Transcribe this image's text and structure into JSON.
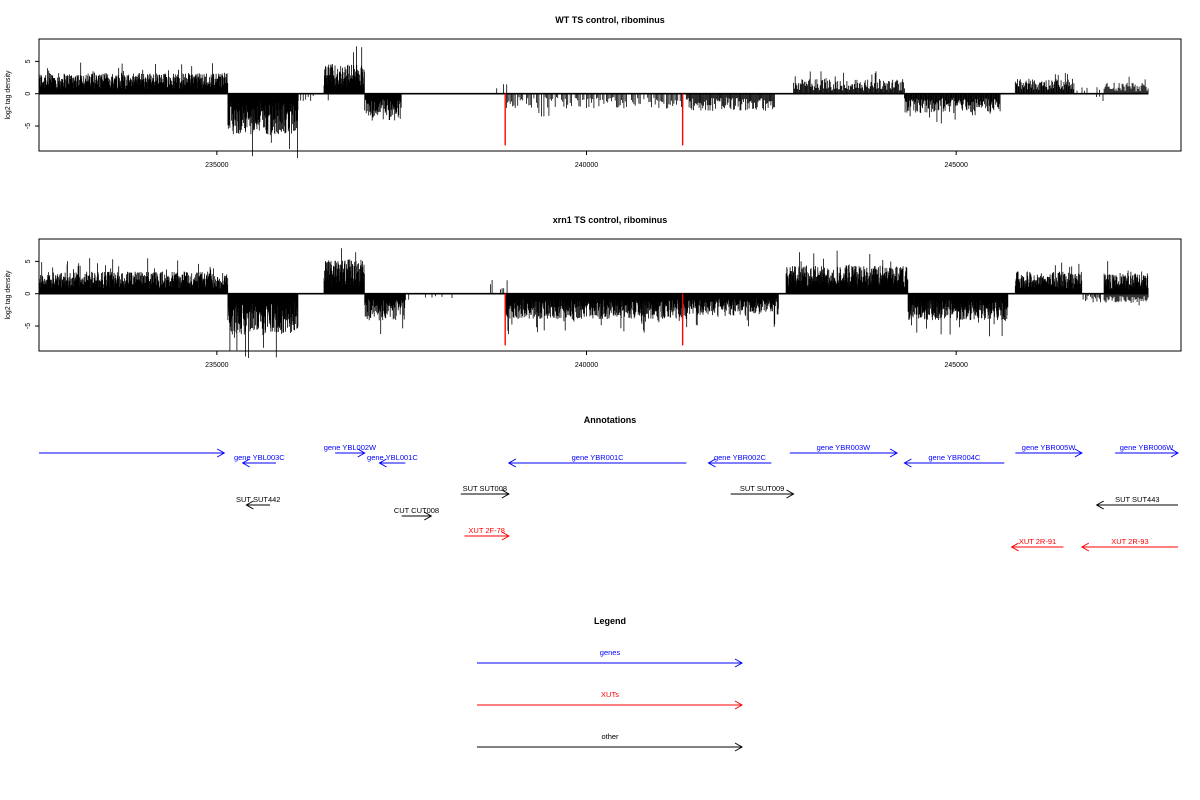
{
  "colors": {
    "gene": "#0000ff",
    "xut": "#ff0000",
    "other": "#000000",
    "marker": "#ff0000",
    "axis": "#000000"
  },
  "chart_data": [
    {
      "type": "bar",
      "title": "WT TS control, ribominus",
      "ylabel": "log2 tag density",
      "xlim": [
        232500,
        248000
      ],
      "ylim": [
        -8.4,
        8
      ],
      "x_ticks": [
        235000,
        240000,
        245000
      ],
      "y_ticks": [
        5,
        0,
        -5
      ],
      "grid": false,
      "markers_x": [
        238900,
        241300
      ],
      "regions": [
        {
          "strand": "+",
          "x0": 232600,
          "x1": 235150,
          "amp": 2.8,
          "density": 3
        },
        {
          "strand": "-",
          "x0": 235150,
          "x1": 236100,
          "amp": 5.5,
          "density": 3
        },
        {
          "strand": "-",
          "x0": 236100,
          "x1": 236600,
          "amp": 1.0,
          "density": 0.4
        },
        {
          "strand": "+",
          "x0": 236450,
          "x1": 237000,
          "amp": 4.0,
          "density": 3
        },
        {
          "strand": "-",
          "x0": 237000,
          "x1": 237500,
          "amp": 3.6,
          "density": 2
        },
        {
          "strand": "+",
          "x0": 238650,
          "x1": 238950,
          "amp": 1.5,
          "density": 0.3
        },
        {
          "strand": "-",
          "x0": 238900,
          "x1": 241350,
          "amp": 2.0,
          "density": 0.8
        },
        {
          "strand": "-",
          "x0": 241350,
          "x1": 242550,
          "amp": 2.3,
          "density": 1.1
        },
        {
          "strand": "+",
          "x0": 242800,
          "x1": 244300,
          "amp": 2.0,
          "density": 1.2
        },
        {
          "strand": "-",
          "x0": 244300,
          "x1": 245600,
          "amp": 2.6,
          "density": 1.6
        },
        {
          "strand": "+",
          "x0": 245800,
          "x1": 246600,
          "amp": 2.0,
          "density": 1.4
        },
        {
          "strand": "+",
          "x0": 246600,
          "x1": 247000,
          "amp": 1.0,
          "density": 0.4
        },
        {
          "strand": "-",
          "x0": 246400,
          "x1": 247000,
          "amp": 1.0,
          "density": 0.3
        },
        {
          "strand": "+",
          "x0": 247000,
          "x1": 247600,
          "amp": 1.5,
          "density": 1.0
        }
      ]
    },
    {
      "type": "bar",
      "title": "xrn1 TS control, ribominus",
      "ylabel": "log2 tag density",
      "xlim": [
        232500,
        248000
      ],
      "ylim": [
        -8.4,
        8
      ],
      "x_ticks": [
        235000,
        240000,
        245000
      ],
      "y_ticks": [
        5,
        0,
        -5
      ],
      "grid": false,
      "markers_x": [
        238900,
        241300
      ],
      "regions": [
        {
          "strand": "+",
          "x0": 232600,
          "x1": 235150,
          "amp": 3.0,
          "density": 3
        },
        {
          "strand": "-",
          "x0": 235150,
          "x1": 236100,
          "amp": 5.5,
          "density": 3
        },
        {
          "strand": "+",
          "x0": 236450,
          "x1": 237000,
          "amp": 4.6,
          "density": 3
        },
        {
          "strand": "-",
          "x0": 237000,
          "x1": 237550,
          "amp": 3.6,
          "density": 2
        },
        {
          "strand": "-",
          "x0": 237550,
          "x1": 238200,
          "amp": 1.0,
          "density": 0.3
        },
        {
          "strand": "+",
          "x0": 238700,
          "x1": 238950,
          "amp": 2.0,
          "density": 0.6
        },
        {
          "strand": "-",
          "x0": 238900,
          "x1": 241350,
          "amp": 3.4,
          "density": 3
        },
        {
          "strand": "-",
          "x0": 241350,
          "x1": 242600,
          "amp": 3.0,
          "density": 2.4
        },
        {
          "strand": "+",
          "x0": 242700,
          "x1": 244350,
          "amp": 3.8,
          "density": 3
        },
        {
          "strand": "-",
          "x0": 244350,
          "x1": 245700,
          "amp": 3.6,
          "density": 3
        },
        {
          "strand": "+",
          "x0": 245800,
          "x1": 246700,
          "amp": 3.0,
          "density": 2.5
        },
        {
          "strand": "-",
          "x0": 246700,
          "x1": 247000,
          "amp": 1.2,
          "density": 0.8
        },
        {
          "strand": "+",
          "x0": 247000,
          "x1": 247600,
          "amp": 2.8,
          "density": 2.5
        },
        {
          "strand": "-",
          "x0": 247000,
          "x1": 247600,
          "amp": 1.2,
          "density": 1
        }
      ]
    },
    {
      "type": "annotation",
      "title": "Annotations",
      "xlim": [
        232500,
        248000
      ],
      "features": [
        {
          "label": "",
          "kind": "gene",
          "x0": 232500,
          "x1": 235100,
          "dir": 1,
          "row": 0
        },
        {
          "label": "gene YBL003C",
          "kind": "gene",
          "x0": 235350,
          "x1": 235800,
          "dir": -1,
          "row": 1
        },
        {
          "label": "gene YBL002W",
          "kind": "gene",
          "x0": 236600,
          "x1": 237000,
          "dir": 1,
          "row": 0
        },
        {
          "label": "gene YBL001C",
          "kind": "gene",
          "x0": 237200,
          "x1": 237550,
          "dir": -1,
          "row": 1
        },
        {
          "label": "gene YBR001C",
          "kind": "gene",
          "x0": 238950,
          "x1": 241350,
          "dir": -1,
          "row": 1
        },
        {
          "label": "gene YBR002C",
          "kind": "gene",
          "x0": 241650,
          "x1": 242500,
          "dir": -1,
          "row": 1
        },
        {
          "label": "gene YBR003W",
          "kind": "gene",
          "x0": 242750,
          "x1": 244200,
          "dir": 1,
          "row": 0
        },
        {
          "label": "gene YBR004C",
          "kind": "gene",
          "x0": 244300,
          "x1": 245650,
          "dir": -1,
          "row": 1
        },
        {
          "label": "gene YBR005W",
          "kind": "gene",
          "x0": 245800,
          "x1": 246700,
          "dir": 1,
          "row": 0
        },
        {
          "label": "gene YBR006W",
          "kind": "gene",
          "x0": 247150,
          "x1": 248000,
          "dir": 1,
          "row": 0
        },
        {
          "label": "SUT SUT442",
          "kind": "other",
          "x0": 235400,
          "x1": 235720,
          "dir": -1,
          "row": 2
        },
        {
          "label": "SUT SUT008",
          "kind": "other",
          "x0": 238300,
          "x1": 238950,
          "dir": 1,
          "row": 3
        },
        {
          "label": "CUT CUT008",
          "kind": "other",
          "x0": 237500,
          "x1": 237900,
          "dir": 1,
          "row": 4
        },
        {
          "label": "SUT SUT009",
          "kind": "other",
          "x0": 241950,
          "x1": 242800,
          "dir": 1,
          "row": 3
        },
        {
          "label": "SUT SUT443",
          "kind": "other",
          "x0": 246900,
          "x1": 248000,
          "dir": -1,
          "row": 2
        },
        {
          "label": "XUT 2F-78",
          "kind": "xut",
          "x0": 238350,
          "x1": 238950,
          "dir": 1,
          "row": 5
        },
        {
          "label": "XUT 2R-91",
          "kind": "xut",
          "x0": 245750,
          "x1": 246450,
          "dir": -1,
          "row": 6
        },
        {
          "label": "XUT 2R-93",
          "kind": "xut",
          "x0": 246700,
          "x1": 248000,
          "dir": -1,
          "row": 6
        }
      ]
    },
    {
      "type": "legend",
      "title": "Legend",
      "entries": [
        {
          "label": "genes",
          "kind": "gene"
        },
        {
          "label": "XUTs",
          "kind": "xut"
        },
        {
          "label": "other",
          "kind": "other"
        }
      ]
    }
  ]
}
